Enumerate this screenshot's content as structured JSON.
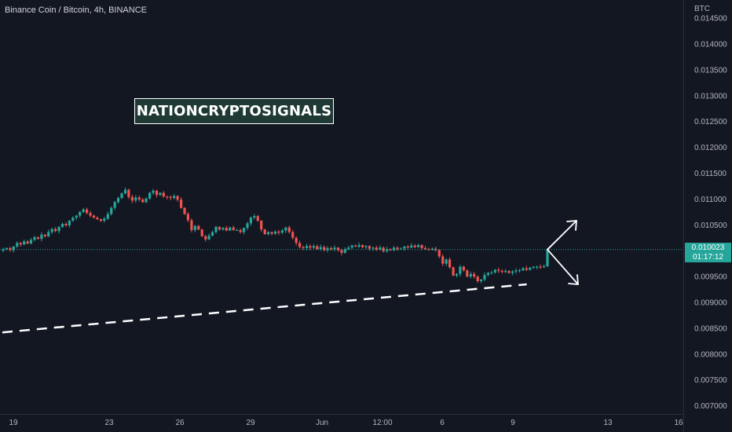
{
  "header": {
    "title": "Binance Coin / Bitcoin, 4h, BINANCE"
  },
  "watermark": {
    "text": "NATIONCRYPTOSIGNALS"
  },
  "price_axis": {
    "currency": "BTC"
  },
  "last_price": {
    "value": "0.010023",
    "countdown": "01:17:12"
  },
  "colors": {
    "background": "#131722",
    "up": "#26a69a",
    "down": "#ef5350",
    "axis_text": "#b2b5be",
    "grid": "#2a2e39",
    "annotation": "#ffffff"
  },
  "chart_data": {
    "type": "candlestick",
    "title": "Binance Coin / Bitcoin, 4h, BINANCE",
    "xlabel": "",
    "ylabel": "",
    "y_axis_unit": "BTC",
    "ylim": [
      0.0068,
      0.0146
    ],
    "x_tick_labels": [
      "19",
      "23",
      "26",
      "29",
      "Jun",
      "12:00",
      "6",
      "9",
      "13",
      "16"
    ],
    "y_tick_labels": [
      "0.014500",
      "0.014000",
      "0.013500",
      "0.013000",
      "0.012500",
      "0.012000",
      "0.011500",
      "0.011000",
      "0.010500",
      "0.010000",
      "0.009500",
      "0.009000",
      "0.008500",
      "0.008000",
      "0.007500",
      "0.007000"
    ],
    "y_ticks": [
      0.0145,
      0.014,
      0.0135,
      0.013,
      0.0125,
      0.012,
      0.0115,
      0.011,
      0.0105,
      0.01,
      0.0095,
      0.009,
      0.0085,
      0.008,
      0.0075,
      0.007
    ],
    "last_price": 0.010023,
    "trendline_support": {
      "style": "dashed",
      "from": [
        0,
        0.00842
      ],
      "to": [
        0.77,
        0.00935
      ]
    },
    "projection_arrows": {
      "origin": 0.010023,
      "up_target": 0.01058,
      "down_target": 0.00935
    },
    "series": [
      {
        "closes": [
          0.01003,
          0.01005,
          0.01001,
          0.01008,
          0.01015,
          0.01012,
          0.01018,
          0.01014,
          0.01021,
          0.01026,
          0.01023,
          0.01031,
          0.01028,
          0.01036,
          0.01042,
          0.01038,
          0.01046,
          0.01052,
          0.01049,
          0.01058,
          0.01064,
          0.01068,
          0.01075,
          0.0108,
          0.01073,
          0.01068,
          0.01064,
          0.01061,
          0.01058,
          0.01062,
          0.01071,
          0.01083,
          0.01094,
          0.01102,
          0.01111,
          0.01118,
          0.01104,
          0.01097,
          0.01103,
          0.01099,
          0.01094,
          0.01101,
          0.01112,
          0.01116,
          0.01108,
          0.01112,
          0.01105,
          0.01104,
          0.01102,
          0.01106,
          0.01099,
          0.01083,
          0.01071,
          0.01059,
          0.0104,
          0.01048,
          0.01041,
          0.01028,
          0.01022,
          0.01029,
          0.01036,
          0.01046,
          0.01041,
          0.01044,
          0.01039,
          0.01045,
          0.0104,
          0.0104,
          0.01036,
          0.01044,
          0.01053,
          0.01064,
          0.01067,
          0.01058,
          0.01041,
          0.01032,
          0.01036,
          0.01033,
          0.01037,
          0.01035,
          0.01039,
          0.01045,
          0.01036,
          0.01025,
          0.01015,
          0.01007,
          0.01005,
          0.01009,
          0.01006,
          0.01009,
          0.01003,
          0.01007,
          0.01001,
          0.01005,
          0.01003,
          0.01006,
          0.01001,
          0.00996,
          0.01003,
          0.01006,
          0.0101,
          0.01008,
          0.01011,
          0.01007,
          0.01009,
          0.01004,
          0.01006,
          0.01002,
          0.01006,
          0.00999,
          0.01003,
          0.01001,
          0.01006,
          0.01003,
          0.01004,
          0.01008,
          0.01006,
          0.0101,
          0.01007,
          0.01011,
          0.01005,
          0.01003,
          0.01002,
          0.01004,
          0.01001,
          0.00989,
          0.00975,
          0.00983,
          0.00968,
          0.00952,
          0.00955,
          0.00969,
          0.00962,
          0.0095,
          0.00955,
          0.0095,
          0.00941,
          0.00944,
          0.00953,
          0.00957,
          0.00958,
          0.00963,
          0.00961,
          0.00959,
          0.00961,
          0.00957,
          0.0096,
          0.00962,
          0.00962,
          0.00966,
          0.00963,
          0.00967,
          0.00969,
          0.00969,
          0.00968,
          0.0097,
          0.01002
        ]
      }
    ]
  }
}
